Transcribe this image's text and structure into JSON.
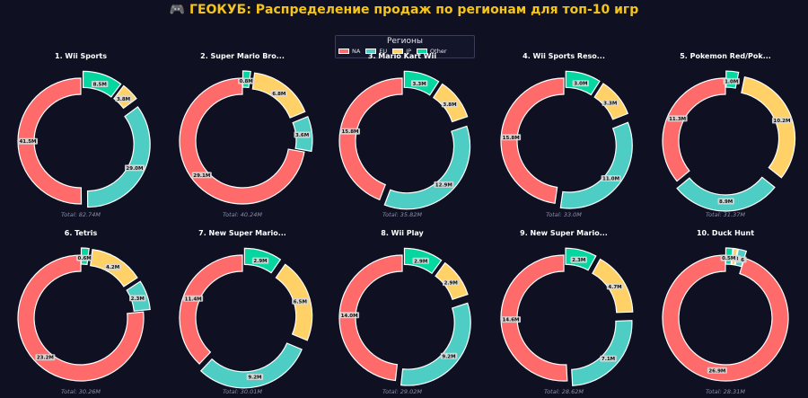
{
  "header": {
    "title": "🎮 ГЕОКУБ: Распределение продаж по регионам для топ-10 игр"
  },
  "legend": {
    "title": "Регионы",
    "items": [
      {
        "label": "NA",
        "color": "#ff6b6b"
      },
      {
        "label": "EU",
        "color": "#4ecdc4"
      },
      {
        "label": "JP",
        "color": "#ffd166"
      },
      {
        "label": "Other",
        "color": "#06d6a0"
      }
    ]
  },
  "chart_data": {
    "type": "pie",
    "variant": "donut",
    "region_order": [
      "NA",
      "EU",
      "JP",
      "Other"
    ],
    "colors": {
      "NA": "#ff6b6b",
      "EU": "#4ecdc4",
      "JP": "#ffd166",
      "Other": "#06d6a0"
    },
    "charts": [
      {
        "title": "1. Wii Sports",
        "total": "Total: 82.74M",
        "values": [
          41.5,
          29.0,
          3.8,
          8.5
        ],
        "labels": [
          "41.5M",
          "29.0M",
          "3.8M",
          "8.5M"
        ]
      },
      {
        "title": "2. Super Mario Bro...",
        "total": "Total: 40.24M",
        "values": [
          29.1,
          3.6,
          6.8,
          0.8
        ],
        "labels": [
          "29.1M",
          "3.6M",
          "6.8M",
          "0.8M"
        ]
      },
      {
        "title": "3. Mario Kart Wii",
        "total": "Total: 35.82M",
        "values": [
          15.8,
          12.9,
          3.8,
          3.3
        ],
        "labels": [
          "15.8M",
          "12.9M",
          "3.8M",
          "3.3M"
        ]
      },
      {
        "title": "4. Wii Sports Reso...",
        "total": "Total: 33.0M",
        "values": [
          15.8,
          11.0,
          3.3,
          3.0
        ],
        "labels": [
          "15.8M",
          "11.0M",
          "3.3M",
          "3.0M"
        ]
      },
      {
        "title": "5. Pokemon Red/Pok...",
        "total": "Total: 31.37M",
        "values": [
          11.3,
          8.9,
          10.2,
          1.0
        ],
        "labels": [
          "11.3M",
          "8.9M",
          "10.2M",
          "1.0M"
        ]
      },
      {
        "title": "6. Tetris",
        "total": "Total: 30.26M",
        "values": [
          23.2,
          2.3,
          4.2,
          0.6
        ],
        "labels": [
          "23.2M",
          "2.3M",
          "4.2M",
          "0.6M"
        ]
      },
      {
        "title": "7. New Super Mario...",
        "total": "Total: 30.01M",
        "values": [
          11.4,
          9.2,
          6.5,
          2.9
        ],
        "labels": [
          "11.4M",
          "9.2M",
          "6.5M",
          "2.9M"
        ]
      },
      {
        "title": "8. Wii Play",
        "total": "Total: 29.02M",
        "values": [
          14.0,
          9.2,
          2.9,
          2.9
        ],
        "labels": [
          "14.0M",
          "9.2M",
          "2.9M",
          "2.9M"
        ]
      },
      {
        "title": "9. New Super Mario...",
        "total": "Total: 28.62M",
        "values": [
          14.6,
          7.1,
          4.7,
          2.3
        ],
        "labels": [
          "14.6M",
          "7.1M",
          "4.7M",
          "2.3M"
        ]
      },
      {
        "title": "10. Duck Hunt",
        "total": "Total: 28.31M",
        "values": [
          26.9,
          0.6,
          0.3,
          0.5
        ],
        "labels": [
          "26.9M",
          "0.6",
          "0.3",
          "0.5M"
        ]
      }
    ]
  }
}
